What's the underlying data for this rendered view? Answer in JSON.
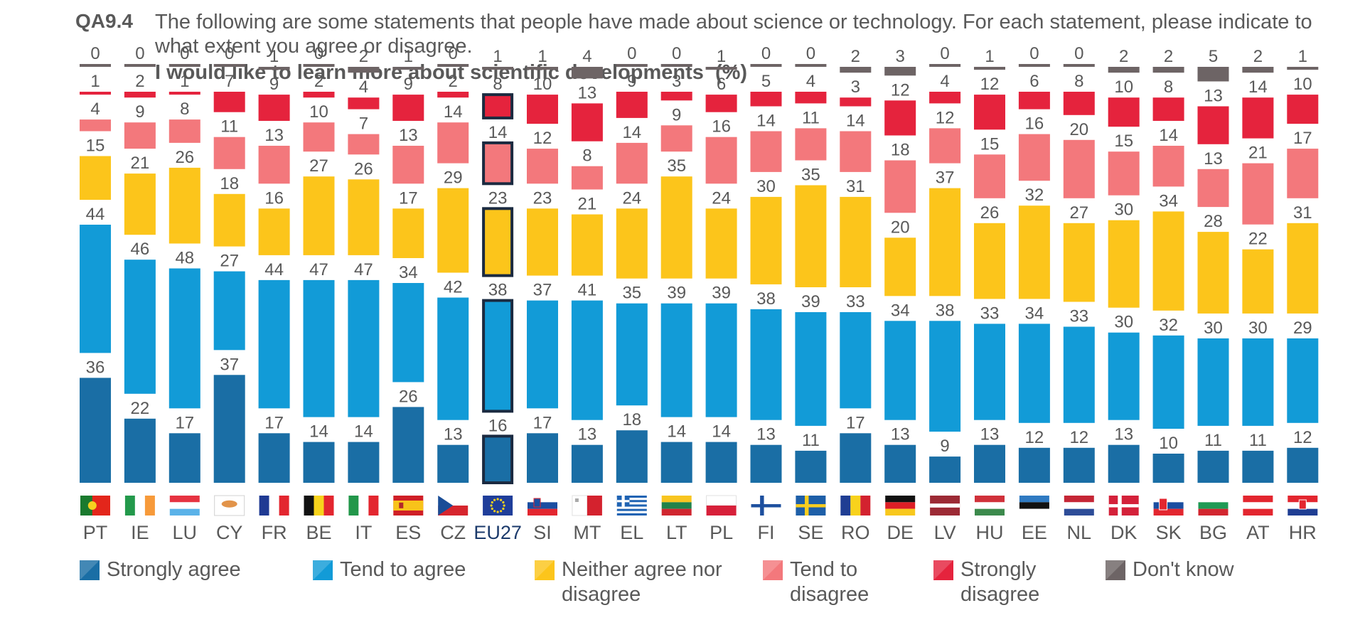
{
  "header": {
    "code": "QA9.4",
    "question": "The following are some statements that people have made about science or technology. For each statement, please indicate to what extent you agree or disagree.",
    "subtitle": "I would like to learn more about scientific developments",
    "unit": "(%)"
  },
  "colors": {
    "strongly_agree": "#1a6ea5",
    "tend_agree": "#129bd7",
    "neither": "#fcc51b",
    "tend_disagree": "#f3787c",
    "strongly_disagree": "#e5233d",
    "dont_know": "#6d6465",
    "highlight_outline": "#1b2a40"
  },
  "legend": [
    {
      "key": "strongly_agree",
      "label": "Strongly agree"
    },
    {
      "key": "tend_agree",
      "label": "Tend to agree"
    },
    {
      "key": "neither",
      "label": "Neither agree nor disagree"
    },
    {
      "key": "tend_disagree",
      "label": "Tend to disagree"
    },
    {
      "key": "strongly_disagree",
      "label": "Strongly disagree"
    },
    {
      "key": "dont_know",
      "label": "Don't know"
    }
  ],
  "chart_data": {
    "type": "bar",
    "stacked": true,
    "highlight_category": "EU27",
    "categories": [
      "PT",
      "IE",
      "LU",
      "CY",
      "FR",
      "BE",
      "IT",
      "ES",
      "CZ",
      "EU27",
      "SI",
      "MT",
      "EL",
      "LT",
      "PL",
      "FI",
      "SE",
      "RO",
      "DE",
      "LV",
      "HU",
      "EE",
      "NL",
      "DK",
      "SK",
      "BG",
      "AT",
      "HR"
    ],
    "series": [
      {
        "name": "Strongly agree",
        "key": "strongly_agree",
        "values": [
          36,
          22,
          17,
          37,
          17,
          14,
          14,
          26,
          13,
          16,
          17,
          13,
          18,
          14,
          14,
          13,
          11,
          17,
          13,
          9,
          13,
          12,
          12,
          13,
          10,
          11,
          11,
          12
        ]
      },
      {
        "name": "Tend to agree",
        "key": "tend_agree",
        "values": [
          44,
          46,
          48,
          27,
          44,
          47,
          47,
          34,
          42,
          38,
          37,
          41,
          35,
          39,
          39,
          38,
          39,
          33,
          34,
          38,
          33,
          34,
          33,
          30,
          32,
          30,
          30,
          29
        ]
      },
      {
        "name": "Neither agree nor disagree",
        "key": "neither",
        "values": [
          15,
          21,
          26,
          18,
          16,
          27,
          26,
          17,
          29,
          23,
          23,
          21,
          24,
          35,
          24,
          30,
          35,
          31,
          20,
          37,
          26,
          32,
          27,
          30,
          34,
          28,
          22,
          31
        ]
      },
      {
        "name": "Tend to disagree",
        "key": "tend_disagree",
        "values": [
          4,
          9,
          8,
          11,
          13,
          10,
          7,
          13,
          14,
          14,
          12,
          8,
          14,
          9,
          16,
          14,
          11,
          14,
          18,
          12,
          15,
          16,
          20,
          15,
          14,
          13,
          21,
          17
        ]
      },
      {
        "name": "Strongly disagree",
        "key": "strongly_disagree",
        "values": [
          1,
          2,
          1,
          7,
          9,
          2,
          4,
          9,
          2,
          8,
          10,
          13,
          9,
          3,
          6,
          5,
          4,
          3,
          12,
          4,
          12,
          6,
          8,
          10,
          8,
          13,
          14,
          10
        ]
      },
      {
        "name": "Don't know",
        "key": "dont_know",
        "values": [
          0,
          0,
          0,
          0,
          1,
          0,
          2,
          1,
          0,
          1,
          1,
          4,
          0,
          0,
          1,
          0,
          0,
          2,
          3,
          0,
          1,
          0,
          0,
          2,
          2,
          5,
          2,
          1
        ]
      }
    ],
    "flags": [
      {
        "code": "PT",
        "name": "portugal-flag"
      },
      {
        "code": "IE",
        "name": "ireland-flag"
      },
      {
        "code": "LU",
        "name": "luxembourg-flag"
      },
      {
        "code": "CY",
        "name": "cyprus-flag"
      },
      {
        "code": "FR",
        "name": "france-flag"
      },
      {
        "code": "BE",
        "name": "belgium-flag"
      },
      {
        "code": "IT",
        "name": "italy-flag"
      },
      {
        "code": "ES",
        "name": "spain-flag"
      },
      {
        "code": "CZ",
        "name": "czechia-flag"
      },
      {
        "code": "EU27",
        "name": "eu-flag"
      },
      {
        "code": "SI",
        "name": "slovenia-flag"
      },
      {
        "code": "MT",
        "name": "malta-flag"
      },
      {
        "code": "EL",
        "name": "greece-flag"
      },
      {
        "code": "LT",
        "name": "lithuania-flag"
      },
      {
        "code": "PL",
        "name": "poland-flag"
      },
      {
        "code": "FI",
        "name": "finland-flag"
      },
      {
        "code": "SE",
        "name": "sweden-flag"
      },
      {
        "code": "RO",
        "name": "romania-flag"
      },
      {
        "code": "DE",
        "name": "germany-flag"
      },
      {
        "code": "LV",
        "name": "latvia-flag"
      },
      {
        "code": "HU",
        "name": "hungary-flag"
      },
      {
        "code": "EE",
        "name": "estonia-flag"
      },
      {
        "code": "NL",
        "name": "netherlands-flag"
      },
      {
        "code": "DK",
        "name": "denmark-flag"
      },
      {
        "code": "SK",
        "name": "slovakia-flag"
      },
      {
        "code": "BG",
        "name": "bulgaria-flag"
      },
      {
        "code": "AT",
        "name": "austria-flag"
      },
      {
        "code": "HR",
        "name": "croatia-flag"
      }
    ]
  }
}
